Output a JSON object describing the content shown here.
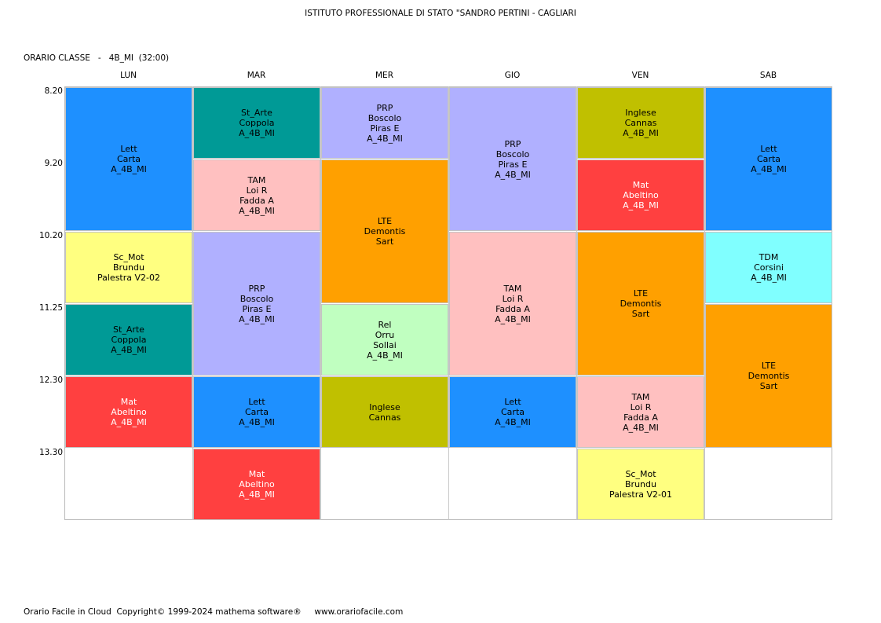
{
  "header": {
    "school": "ISTITUTO PROFESSIONALE DI STATO \"SANDRO PERTINI - CAGLIARI",
    "class_line": "ORARIO CLASSE   -   4B_MI  (32:00)"
  },
  "days": [
    "LUN",
    "MAR",
    "MER",
    "GIO",
    "VEN",
    "SAB"
  ],
  "times": [
    "8.20",
    "9.20",
    "10.20",
    "11.25",
    "12.30",
    "13.30"
  ],
  "colors": {
    "blue": "#1e90ff",
    "teal": "#009a96",
    "pink": "#ffc0c0",
    "lavender": "#b0b0ff",
    "orange": "#ffa000",
    "olive": "#c0c000",
    "red": "#ff4040",
    "yellow": "#ffff80",
    "mint": "#c0ffc0",
    "cyan": "#80ffff"
  },
  "lessons": [
    {
      "day": 0,
      "start": 0,
      "span": 2,
      "color": "blue",
      "light": false,
      "lines": [
        "Lett",
        "Carta",
        "A_4B_MI"
      ]
    },
    {
      "day": 0,
      "start": 2,
      "span": 1,
      "color": "yellow",
      "light": false,
      "lines": [
        "Sc_Mot",
        "Brundu",
        "Palestra V2-02"
      ]
    },
    {
      "day": 0,
      "start": 3,
      "span": 1,
      "color": "teal",
      "light": false,
      "lines": [
        "St_Arte",
        "Coppola",
        "A_4B_MI"
      ]
    },
    {
      "day": 0,
      "start": 4,
      "span": 1,
      "color": "red",
      "light": true,
      "lines": [
        "Mat",
        "Abeltino",
        "A_4B_MI"
      ]
    },
    {
      "day": 1,
      "start": 0,
      "span": 1,
      "color": "teal",
      "light": false,
      "lines": [
        "St_Arte",
        "Coppola",
        "A_4B_MI"
      ]
    },
    {
      "day": 1,
      "start": 1,
      "span": 1,
      "color": "pink",
      "light": false,
      "lines": [
        "TAM",
        "Loi R",
        "Fadda A",
        "A_4B_MI"
      ]
    },
    {
      "day": 1,
      "start": 2,
      "span": 2,
      "color": "lavender",
      "light": false,
      "lines": [
        "PRP",
        "Boscolo",
        "Piras E",
        "A_4B_MI"
      ]
    },
    {
      "day": 1,
      "start": 4,
      "span": 1,
      "color": "blue",
      "light": false,
      "lines": [
        "Lett",
        "Carta",
        "A_4B_MI"
      ]
    },
    {
      "day": 1,
      "start": 5,
      "span": 1,
      "color": "red",
      "light": true,
      "lines": [
        "Mat",
        "Abeltino",
        "A_4B_MI"
      ]
    },
    {
      "day": 2,
      "start": 0,
      "span": 1,
      "color": "lavender",
      "light": false,
      "lines": [
        "PRP",
        "Boscolo",
        "Piras E",
        "A_4B_MI"
      ]
    },
    {
      "day": 2,
      "start": 1,
      "span": 2,
      "color": "orange",
      "light": false,
      "lines": [
        "LTE",
        "Demontis",
        "Sart"
      ]
    },
    {
      "day": 2,
      "start": 3,
      "span": 1,
      "color": "mint",
      "light": false,
      "lines": [
        "Rel",
        "Orru",
        "Sollai",
        "A_4B_MI"
      ]
    },
    {
      "day": 2,
      "start": 4,
      "span": 1,
      "color": "olive",
      "light": false,
      "lines": [
        "Inglese",
        "Cannas"
      ]
    },
    {
      "day": 3,
      "start": 0,
      "span": 2,
      "color": "lavender",
      "light": false,
      "lines": [
        "PRP",
        "Boscolo",
        "Piras E",
        "A_4B_MI"
      ]
    },
    {
      "day": 3,
      "start": 2,
      "span": 2,
      "color": "pink",
      "light": false,
      "lines": [
        "TAM",
        "Loi R",
        "Fadda A",
        "A_4B_MI"
      ]
    },
    {
      "day": 3,
      "start": 4,
      "span": 1,
      "color": "blue",
      "light": false,
      "lines": [
        "Lett",
        "Carta",
        "A_4B_MI"
      ]
    },
    {
      "day": 4,
      "start": 0,
      "span": 1,
      "color": "olive",
      "light": false,
      "lines": [
        "Inglese",
        "Cannas",
        "A_4B_MI"
      ]
    },
    {
      "day": 4,
      "start": 1,
      "span": 1,
      "color": "red",
      "light": true,
      "lines": [
        "Mat",
        "Abeltino",
        "A_4B_MI"
      ]
    },
    {
      "day": 4,
      "start": 2,
      "span": 2,
      "color": "orange",
      "light": false,
      "lines": [
        "LTE",
        "Demontis",
        "Sart"
      ]
    },
    {
      "day": 4,
      "start": 4,
      "span": 1,
      "color": "pink",
      "light": false,
      "lines": [
        "TAM",
        "Loi R",
        "Fadda A",
        "A_4B_MI"
      ]
    },
    {
      "day": 4,
      "start": 5,
      "span": 1,
      "color": "yellow",
      "light": false,
      "lines": [
        "Sc_Mot",
        "Brundu",
        "Palestra V2-01"
      ]
    },
    {
      "day": 5,
      "start": 0,
      "span": 2,
      "color": "blue",
      "light": false,
      "lines": [
        "Lett",
        "Carta",
        "A_4B_MI"
      ]
    },
    {
      "day": 5,
      "start": 2,
      "span": 1,
      "color": "cyan",
      "light": false,
      "lines": [
        "TDM",
        "Corsini",
        "A_4B_MI"
      ]
    },
    {
      "day": 5,
      "start": 3,
      "span": 2,
      "color": "orange",
      "light": false,
      "lines": [
        "LTE",
        "Demontis",
        "Sart"
      ]
    }
  ],
  "footer": "Orario Facile in Cloud  Copyright© 1999-2024 mathema software®     www.orariofacile.com"
}
